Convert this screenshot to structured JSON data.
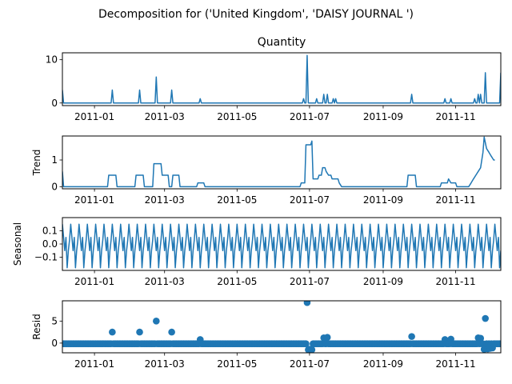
{
  "chart_data": {
    "type": "line",
    "title": "Decomposition for ('United Kingdom', 'DAISY JOURNAL ')",
    "x_tick_labels": [
      "2011-01",
      "2011-03",
      "2011-05",
      "2011-07",
      "2011-09",
      "2011-11"
    ],
    "x_ticks": [
      "2011-01-01",
      "2011-03-01",
      "2011-05-01",
      "2011-07-01",
      "2011-09-01",
      "2011-11-01"
    ],
    "xlim": [
      "2010-12-05",
      "2011-12-09"
    ],
    "panels": [
      {
        "key": "observed",
        "title": "Quantity",
        "ylabel": "",
        "style": "line",
        "ylim": [
          -0.6,
          11.6
        ],
        "yticks": [
          0,
          10
        ],
        "ytick_labels": [
          "0",
          "10"
        ],
        "baseline": 0,
        "series": [
          {
            "date": "2010-12-05",
            "value": 3
          },
          {
            "date": "2011-01-16",
            "value": 3
          },
          {
            "date": "2011-02-08",
            "value": 3
          },
          {
            "date": "2011-02-22",
            "value": 6
          },
          {
            "date": "2011-03-07",
            "value": 3
          },
          {
            "date": "2011-03-31",
            "value": 1
          },
          {
            "date": "2011-06-26",
            "value": 1
          },
          {
            "date": "2011-06-29",
            "value": 11
          },
          {
            "date": "2011-07-07",
            "value": 1
          },
          {
            "date": "2011-07-13",
            "value": 2
          },
          {
            "date": "2011-07-16",
            "value": 2
          },
          {
            "date": "2011-07-21",
            "value": 1
          },
          {
            "date": "2011-07-23",
            "value": 1
          },
          {
            "date": "2011-09-25",
            "value": 2
          },
          {
            "date": "2011-10-23",
            "value": 1
          },
          {
            "date": "2011-10-28",
            "value": 1
          },
          {
            "date": "2011-11-17",
            "value": 1
          },
          {
            "date": "2011-11-20",
            "value": 2
          },
          {
            "date": "2011-11-22",
            "value": 2
          },
          {
            "date": "2011-11-26",
            "value": 7
          },
          {
            "date": "2011-12-09",
            "value": 7
          }
        ]
      },
      {
        "key": "trend",
        "title": "",
        "ylabel": "Trend",
        "style": "line",
        "ylim": [
          -0.08,
          1.9
        ],
        "yticks": [
          0,
          1
        ],
        "ytick_labels": [
          "0",
          "1"
        ],
        "points": [
          [
            "2010-12-05",
            0.57
          ],
          [
            "2010-12-06",
            0
          ],
          [
            "2011-01-12",
            0
          ],
          [
            "2011-01-13",
            0.43
          ],
          [
            "2011-01-19",
            0.43
          ],
          [
            "2011-01-20",
            0
          ],
          [
            "2011-02-04",
            0
          ],
          [
            "2011-02-05",
            0.43
          ],
          [
            "2011-02-11",
            0.43
          ],
          [
            "2011-02-12",
            0
          ],
          [
            "2011-02-19",
            0
          ],
          [
            "2011-02-20",
            0.86
          ],
          [
            "2011-02-26",
            0.86
          ],
          [
            "2011-02-27",
            0.43
          ],
          [
            "2011-03-04",
            0.43
          ],
          [
            "2011-03-05",
            0
          ],
          [
            "2011-03-07",
            0
          ],
          [
            "2011-03-08",
            0.43
          ],
          [
            "2011-03-13",
            0.43
          ],
          [
            "2011-03-14",
            0
          ],
          [
            "2011-03-28",
            0
          ],
          [
            "2011-03-29",
            0.14
          ],
          [
            "2011-04-03",
            0.14
          ],
          [
            "2011-04-04",
            0
          ],
          [
            "2011-06-23",
            0
          ],
          [
            "2011-06-24",
            0.14
          ],
          [
            "2011-06-27",
            0.14
          ],
          [
            "2011-06-28",
            1.57
          ],
          [
            "2011-07-02",
            1.57
          ],
          [
            "2011-07-03",
            1.71
          ],
          [
            "2011-07-04",
            0.29
          ],
          [
            "2011-07-08",
            0.29
          ],
          [
            "2011-07-09",
            0.43
          ],
          [
            "2011-07-11",
            0.43
          ],
          [
            "2011-07-12",
            0.71
          ],
          [
            "2011-07-14",
            0.71
          ],
          [
            "2011-07-15",
            0.57
          ],
          [
            "2011-07-17",
            0.43
          ],
          [
            "2011-07-19",
            0.43
          ],
          [
            "2011-07-20",
            0.29
          ],
          [
            "2011-07-25",
            0.29
          ],
          [
            "2011-07-26",
            0.14
          ],
          [
            "2011-07-28",
            0
          ],
          [
            "2011-09-21",
            0
          ],
          [
            "2011-09-22",
            0.43
          ],
          [
            "2011-09-28",
            0.43
          ],
          [
            "2011-09-29",
            0
          ],
          [
            "2011-10-19",
            0
          ],
          [
            "2011-10-20",
            0.14
          ],
          [
            "2011-10-25",
            0.14
          ],
          [
            "2011-10-26",
            0.29
          ],
          [
            "2011-10-28",
            0.14
          ],
          [
            "2011-11-01",
            0.14
          ],
          [
            "2011-11-02",
            0
          ],
          [
            "2011-11-12",
            0
          ],
          [
            "2011-11-14",
            0.14
          ],
          [
            "2011-11-16",
            0.29
          ],
          [
            "2011-11-18",
            0.43
          ],
          [
            "2011-11-20",
            0.57
          ],
          [
            "2011-11-22",
            0.71
          ],
          [
            "2011-11-24",
            1.29
          ],
          [
            "2011-11-25",
            1.86
          ],
          [
            "2011-11-27",
            1.43
          ],
          [
            "2011-11-29",
            1.29
          ],
          [
            "2011-12-01",
            1.14
          ],
          [
            "2011-12-03",
            1.0
          ],
          [
            "2011-12-04",
            1.0
          ]
        ]
      },
      {
        "key": "seasonal",
        "title": "",
        "ylabel": "Seasonal",
        "style": "line",
        "ylim": [
          -0.2,
          0.2
        ],
        "yticks": [
          -0.1,
          0.0,
          0.1
        ],
        "ytick_labels": [
          "−0.1",
          "0.0",
          "0.1"
        ],
        "period_days": 7,
        "pattern": [
          0.15,
          0.05,
          -0.05,
          0.05,
          -0.18,
          -0.05,
          0.03
        ]
      },
      {
        "key": "resid",
        "title": "",
        "ylabel": "Resid",
        "style": "scatter",
        "ylim": [
          -2.2,
          9.6
        ],
        "yticks": [
          0,
          5
        ],
        "ytick_labels": [
          "0",
          "5"
        ],
        "baseline_value": -0.15,
        "spikes": [
          {
            "date": "2011-01-16",
            "value": 2.5
          },
          {
            "date": "2011-02-08",
            "value": 2.5
          },
          {
            "date": "2011-02-22",
            "value": 5.0
          },
          {
            "date": "2011-03-07",
            "value": 2.5
          },
          {
            "date": "2011-03-31",
            "value": 0.8
          },
          {
            "date": "2011-06-29",
            "value": 9.2
          },
          {
            "date": "2011-06-30",
            "value": -1.5
          },
          {
            "date": "2011-07-01",
            "value": -1.4
          },
          {
            "date": "2011-07-02",
            "value": -1.6
          },
          {
            "date": "2011-07-03",
            "value": -1.5
          },
          {
            "date": "2011-07-13",
            "value": 1.2
          },
          {
            "date": "2011-07-16",
            "value": 1.3
          },
          {
            "date": "2011-09-25",
            "value": 1.5
          },
          {
            "date": "2011-10-23",
            "value": 0.8
          },
          {
            "date": "2011-10-28",
            "value": 0.9
          },
          {
            "date": "2011-11-20",
            "value": 1.2
          },
          {
            "date": "2011-11-22",
            "value": 1.1
          },
          {
            "date": "2011-11-25",
            "value": -1.4
          },
          {
            "date": "2011-11-26",
            "value": 5.6
          },
          {
            "date": "2011-11-28",
            "value": -1.3
          },
          {
            "date": "2011-11-30",
            "value": -1.2
          },
          {
            "date": "2011-12-02",
            "value": -1.1
          }
        ]
      }
    ]
  }
}
